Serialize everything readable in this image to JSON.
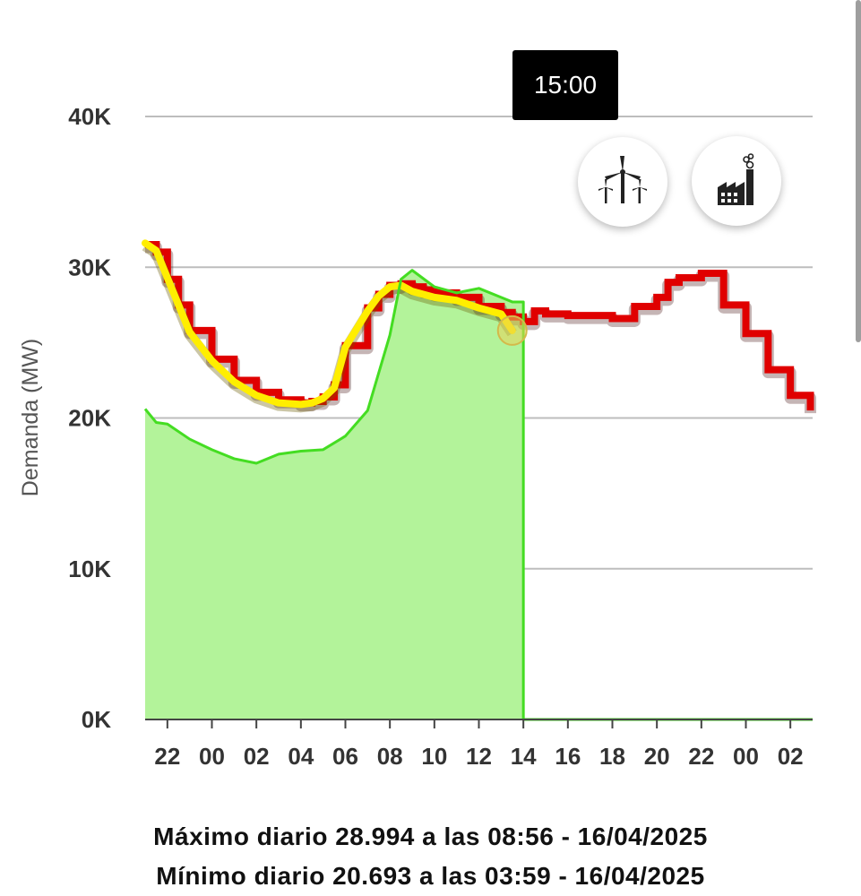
{
  "chart_data": {
    "type": "line",
    "ylabel": "Demanda (MW)",
    "ylim": [
      0,
      40000
    ],
    "y_ticks": [
      "0K",
      "10K",
      "20K",
      "30K",
      "40K"
    ],
    "x_ticks": [
      "22",
      "00",
      "02",
      "04",
      "06",
      "08",
      "10",
      "12",
      "14",
      "16",
      "18",
      "20",
      "22",
      "00",
      "02"
    ],
    "x_range_hours": [
      21,
      51
    ],
    "grid": true,
    "series": [
      {
        "color": "#e00000",
        "style": "step",
        "x": [
          21.0,
          21.5,
          22.0,
          22.5,
          23.0,
          24.0,
          25.0,
          26.0,
          27.0,
          28.0,
          28.5,
          29.0,
          29.5,
          30.0,
          31.0,
          31.5,
          32.0,
          32.5,
          33.0,
          33.5,
          34.0,
          35.0,
          36.0,
          37.0,
          37.5,
          38.0,
          38.5,
          39.0,
          40.0,
          41.0,
          42.0,
          43.0,
          44.0,
          44.5,
          45.0,
          46.0,
          47.0,
          48.0,
          49.0,
          50.0,
          50.9
        ],
        "y": [
          31500,
          31000,
          29200,
          27500,
          25800,
          23900,
          22500,
          21700,
          21200,
          21000,
          21100,
          21400,
          22200,
          24800,
          27300,
          28200,
          28800,
          28900,
          28700,
          28500,
          28300,
          28000,
          27400,
          27000,
          26700,
          26400,
          27100,
          26900,
          26800,
          26800,
          26600,
          27400,
          28000,
          29000,
          29300,
          29600,
          27500,
          25600,
          23200,
          21500,
          20500
        ]
      },
      {
        "color": "#ffee00",
        "style": "line",
        "x": [
          21.0,
          21.5,
          22.0,
          22.5,
          23.0,
          24.0,
          25.0,
          26.0,
          27.0,
          28.0,
          28.5,
          29.0,
          29.5,
          30.0,
          31.0,
          31.5,
          32.0,
          32.5,
          33.0,
          33.5,
          34.0,
          35.0,
          36.0,
          37.0,
          37.5
        ],
        "y": [
          31600,
          31100,
          29300,
          27500,
          25700,
          23800,
          22400,
          21500,
          21000,
          20900,
          21000,
          21300,
          22000,
          24700,
          27100,
          28100,
          28700,
          28800,
          28400,
          28200,
          28000,
          27800,
          27300,
          26900,
          25800
        ]
      },
      {
        "color": "#44dd22",
        "fill": "#b3f39a",
        "style": "area",
        "x": [
          21.0,
          21.5,
          22.0,
          23.0,
          24.0,
          25.0,
          26.0,
          27.0,
          28.0,
          29.0,
          30.0,
          31.0,
          32.0,
          32.5,
          33.0,
          34.0,
          35.0,
          36.0,
          37.0,
          37.5,
          38.0,
          38.0,
          51.0
        ],
        "y": [
          20600,
          19700,
          19600,
          18600,
          17900,
          17300,
          17000,
          17600,
          17800,
          17900,
          18800,
          20500,
          25500,
          29200,
          29800,
          28700,
          28300,
          28600,
          28000,
          27700,
          27700,
          0,
          0
        ]
      }
    ]
  },
  "tooltip": {
    "time": "15:00"
  },
  "buttons": {
    "wind_icon": "wind-turbine-icon",
    "factory_icon": "factory-icon"
  },
  "footer": {
    "max_line": "Máximo diario 28.994 a las 08:56 - 16/04/2025",
    "min_line": "Mínimo diario 20.693 a las 03:59 - 16/04/2025"
  }
}
